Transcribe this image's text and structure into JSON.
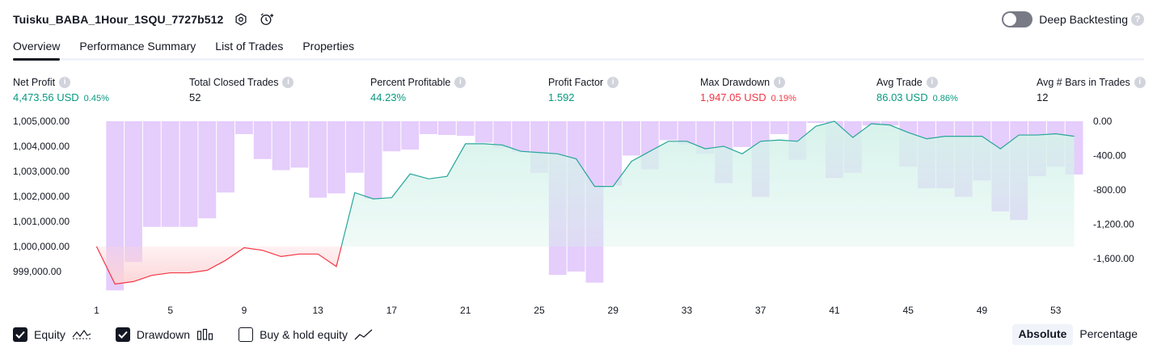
{
  "strategy": {
    "title": "Tuisku_BABA_1Hour_1SQU_7727b512"
  },
  "deep_backtesting": {
    "label": "Deep Backtesting",
    "help": "?",
    "enabled": false
  },
  "tabs": [
    {
      "label": "Overview",
      "active": true
    },
    {
      "label": "Performance Summary",
      "active": false
    },
    {
      "label": "List of Trades",
      "active": false
    },
    {
      "label": "Properties",
      "active": false
    }
  ],
  "metrics": [
    {
      "label": "Net Profit",
      "value": "4,473.56 USD",
      "pct": "0.45%",
      "tone": "green"
    },
    {
      "label": "Total Closed Trades",
      "value": "52",
      "pct": "",
      "tone": "neutral"
    },
    {
      "label": "Percent Profitable",
      "value": "44.23%",
      "pct": "",
      "tone": "green"
    },
    {
      "label": "Profit Factor",
      "value": "1.592",
      "pct": "",
      "tone": "green"
    },
    {
      "label": "Max Drawdown",
      "value": "1,947.05 USD",
      "pct": "0.19%",
      "tone": "red"
    },
    {
      "label": "Avg Trade",
      "value": "86.03 USD",
      "pct": "0.86%",
      "tone": "green"
    },
    {
      "label": "Avg # Bars in Trades",
      "value": "12",
      "pct": "",
      "tone": "neutral"
    }
  ],
  "chart_data": {
    "type": "line",
    "x_ticks": [
      1,
      5,
      9,
      13,
      17,
      21,
      25,
      29,
      33,
      37,
      41,
      45,
      49,
      53
    ],
    "x_range": [
      1,
      53
    ],
    "equity_axis": {
      "range": [
        998500,
        1005000
      ],
      "ticks": [
        1005000,
        1004000,
        1003000,
        1002000,
        1001000,
        1000000,
        999000
      ],
      "tick_labels": [
        "1,005,000.00",
        "1,004,000.00",
        "1,003,000.00",
        "1,002,000.00",
        "1,001,000.00",
        "1,000,000.00",
        "999,000.00"
      ],
      "baseline": 1000000
    },
    "drawdown_axis": {
      "range": [
        0,
        -1700
      ],
      "ticks": [
        0,
        -400,
        -800,
        -1200,
        -1600
      ],
      "tick_labels": [
        "0.00",
        "-400.00",
        "-800.00",
        "-1,200.00",
        "-1,600.00"
      ]
    },
    "series": [
      {
        "name": "Equity",
        "values": [
          1000000,
          998500,
          998600,
          998850,
          998950,
          998950,
          999050,
          999450,
          999950,
          999850,
          999600,
          999700,
          999700,
          999200,
          1002150,
          1001900,
          1001950,
          1002900,
          1002700,
          1002800,
          1004100,
          1004100,
          1004050,
          1003800,
          1003750,
          1003700,
          1003500,
          1002400,
          1002400,
          1003400,
          1003800,
          1004200,
          1004200,
          1003900,
          1004000,
          1003700,
          1004200,
          1004250,
          1004200,
          1004800,
          1005000,
          1004350,
          1004900,
          1004850,
          1004550,
          1004300,
          1004400,
          1004400,
          1004400,
          1003900,
          1004450,
          1004450,
          1004500,
          1004400
        ]
      },
      {
        "name": "Drawdown",
        "values": [
          -1750,
          -1970,
          -1640,
          -1230,
          -1230,
          -1230,
          -1130,
          -830,
          -150,
          -440,
          -570,
          -540,
          -890,
          -840,
          -600,
          -900,
          -350,
          -330,
          -150,
          -160,
          -170,
          -250,
          -310,
          -360,
          -600,
          -1790,
          -1750,
          -1880,
          -750,
          -400,
          -560,
          -220,
          -270,
          -380,
          -720,
          -300,
          -880,
          -150,
          -450,
          -20,
          -660,
          -600,
          -50,
          -50,
          -530,
          -780,
          -780,
          -880,
          -690,
          -1050,
          -1150,
          -640,
          -530,
          -620
        ]
      }
    ]
  },
  "legend": {
    "equity": {
      "label": "Equity",
      "checked": true
    },
    "drawdown": {
      "label": "Drawdown",
      "checked": true
    },
    "buyhold": {
      "label": "Buy & hold equity",
      "checked": false
    }
  },
  "mode": {
    "absolute": "Absolute",
    "percentage": "Percentage",
    "selected": "absolute"
  },
  "colors": {
    "equity_line_up": "#26a69a",
    "equity_line_down": "#f23645",
    "equity_fill_up": "#d5f2ea",
    "equity_fill_down": "#fcd3d6",
    "drawdown_bar": "#e1c4fb",
    "axis_text": "#131722"
  }
}
